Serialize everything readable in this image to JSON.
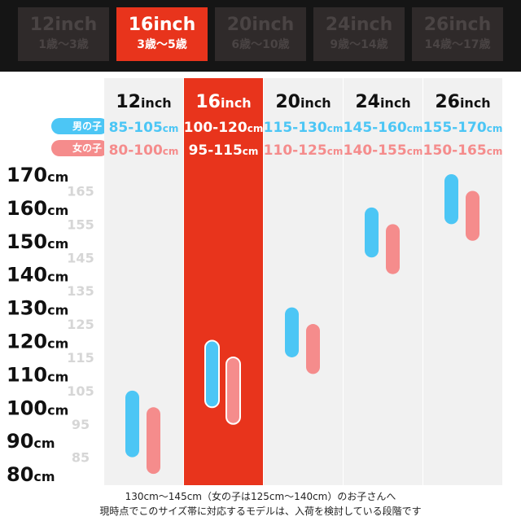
{
  "tabs": [
    {
      "size": "12inch",
      "age": "1歳〜3歳",
      "active": false
    },
    {
      "size": "16inch",
      "age": "3歳〜5歳",
      "active": true
    },
    {
      "size": "20inch",
      "age": "6歳〜10歳",
      "active": false
    },
    {
      "size": "24inch",
      "age": "9歳〜14歳",
      "active": false
    },
    {
      "size": "26inch",
      "age": "14歳〜17歳",
      "active": false
    }
  ],
  "legend": {
    "boy": "男の子",
    "girl": "女の子"
  },
  "colors": {
    "boy": "#4cc6f5",
    "girl": "#f58c8c",
    "accent": "#e8341c",
    "column_bg": "#f1f1f1",
    "tab_bg": "#2f2a2a"
  },
  "footnote": {
    "line1": "130cm〜145cm（女の子は125cm〜140cm）のお子さんへ",
    "line2": "現時点でこのサイズ帯に対応するモデルは、入荷を検討している段階です"
  },
  "chart_data": {
    "type": "range-bar",
    "categories": [
      "12inch",
      "16inch",
      "20inch",
      "24inch",
      "26inch"
    ],
    "highlight": "16inch",
    "series": [
      {
        "name": "男の子",
        "labels": [
          "85-105cm",
          "100-120cm",
          "115-130cm",
          "145-160cm",
          "155-170cm"
        ],
        "ranges": [
          [
            85,
            105
          ],
          [
            100,
            120
          ],
          [
            115,
            130
          ],
          [
            145,
            160
          ],
          [
            155,
            170
          ]
        ]
      },
      {
        "name": "女の子",
        "labels": [
          "80-100cm",
          "95-115cm",
          "110-125cm",
          "140-155cm",
          "150-165cm"
        ],
        "ranges": [
          [
            80,
            100
          ],
          [
            95,
            115
          ],
          [
            110,
            125
          ],
          [
            140,
            155
          ],
          [
            150,
            165
          ]
        ]
      }
    ],
    "y_ticks_major": [
      "80cm",
      "90cm",
      "100cm",
      "110cm",
      "120cm",
      "130cm",
      "140cm",
      "150cm",
      "160cm",
      "170cm"
    ],
    "y_ticks_minor": [
      "85",
      "95",
      "105",
      "115",
      "125",
      "135",
      "145",
      "155",
      "165"
    ],
    "ylim": [
      80,
      170
    ]
  }
}
